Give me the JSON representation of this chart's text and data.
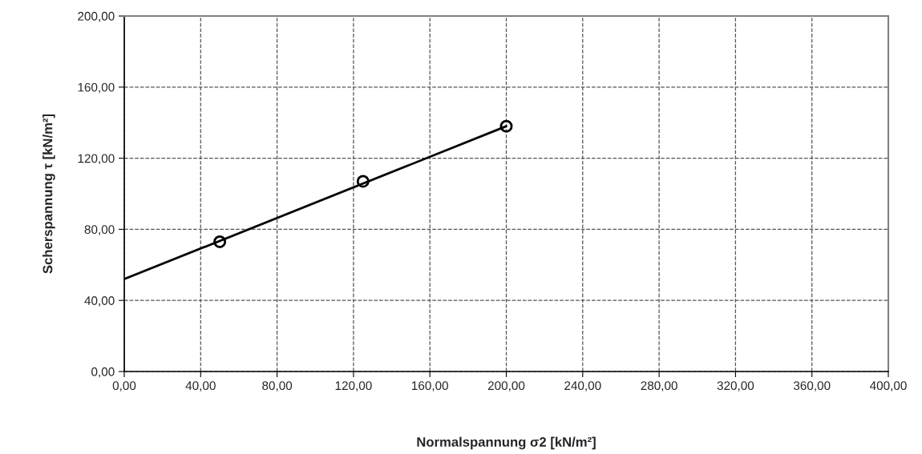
{
  "chart_data": {
    "type": "scatter",
    "xlabel": "Normalspannung σ2 [kN/m²]",
    "ylabel": "Scherspannung τ [kN/m²]",
    "xlim": [
      0,
      400
    ],
    "ylim": [
      0,
      200
    ],
    "xticks": [
      {
        "value": 0,
        "label": "0,00"
      },
      {
        "value": 40,
        "label": "40,00"
      },
      {
        "value": 80,
        "label": "80,00"
      },
      {
        "value": 120,
        "label": "120,00"
      },
      {
        "value": 160,
        "label": "160,00"
      },
      {
        "value": 200,
        "label": "200,00"
      },
      {
        "value": 240,
        "label": "240,00"
      },
      {
        "value": 280,
        "label": "280,00"
      },
      {
        "value": 320,
        "label": "320,00"
      },
      {
        "value": 360,
        "label": "360,00"
      },
      {
        "value": 400,
        "label": "400,00"
      }
    ],
    "yticks": [
      {
        "value": 0,
        "label": "0,00"
      },
      {
        "value": 40,
        "label": "40,00"
      },
      {
        "value": 80,
        "label": "80,00"
      },
      {
        "value": 120,
        "label": "120,00"
      },
      {
        "value": 160,
        "label": "160,00"
      },
      {
        "value": 200,
        "label": "200,00"
      }
    ],
    "grid": true,
    "line_style": "dashed",
    "series": [
      {
        "color": "#000000",
        "marker": "circle",
        "x": [
          50,
          125,
          200
        ],
        "values": [
          73,
          107,
          138
        ]
      },
      {
        "type": "line",
        "color": "#000000",
        "marker": "none",
        "line_style": "solid",
        "x": [
          0,
          200
        ],
        "values": [
          52,
          138
        ]
      }
    ]
  }
}
